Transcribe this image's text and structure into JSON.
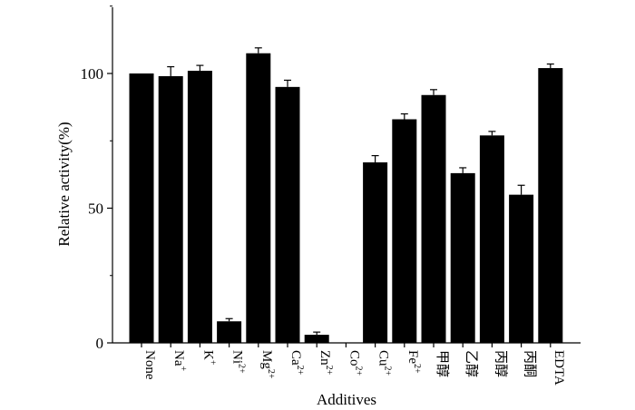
{
  "chart_data": {
    "type": "bar",
    "xlabel": "Additives",
    "ylabel": "Relative activity(%)",
    "ylim": [
      0,
      125
    ],
    "yticks": [
      0,
      50,
      100
    ],
    "grid": false,
    "bar_color": "#000000",
    "categories": [
      "None",
      "Na+",
      "K+",
      "Ni2+",
      "Mg2+",
      "Ca2+",
      "Zn2+",
      "Co2+",
      "Cu2+",
      "Fe2+",
      "甲醇",
      "乙醇",
      "丙醇",
      "丙酮",
      "EDTA"
    ],
    "tick_labels": [
      {
        "base": "None",
        "sup": ""
      },
      {
        "base": "Na",
        "sup": "+"
      },
      {
        "base": "K",
        "sup": "+"
      },
      {
        "base": "Ni",
        "sup": "2+"
      },
      {
        "base": "Mg",
        "sup": "2+"
      },
      {
        "base": "Ca",
        "sup": "2+"
      },
      {
        "base": "Zn",
        "sup": "2+"
      },
      {
        "base": "Co",
        "sup": "2+"
      },
      {
        "base": "Cu",
        "sup": "2+"
      },
      {
        "base": "Fe",
        "sup": "2+"
      },
      {
        "base": "甲醇",
        "sup": ""
      },
      {
        "base": "乙醇",
        "sup": ""
      },
      {
        "base": "丙醇",
        "sup": ""
      },
      {
        "base": "丙酮",
        "sup": ""
      },
      {
        "base": "EDTA",
        "sup": ""
      }
    ],
    "values": [
      100,
      99,
      101,
      8,
      107.5,
      95,
      3,
      0,
      67,
      83,
      92,
      63,
      77,
      55,
      102
    ],
    "errors": [
      0,
      3.5,
      2,
      1,
      2,
      2.5,
      1,
      0,
      2.5,
      2,
      2,
      2,
      1.5,
      3.5,
      1.5
    ]
  }
}
